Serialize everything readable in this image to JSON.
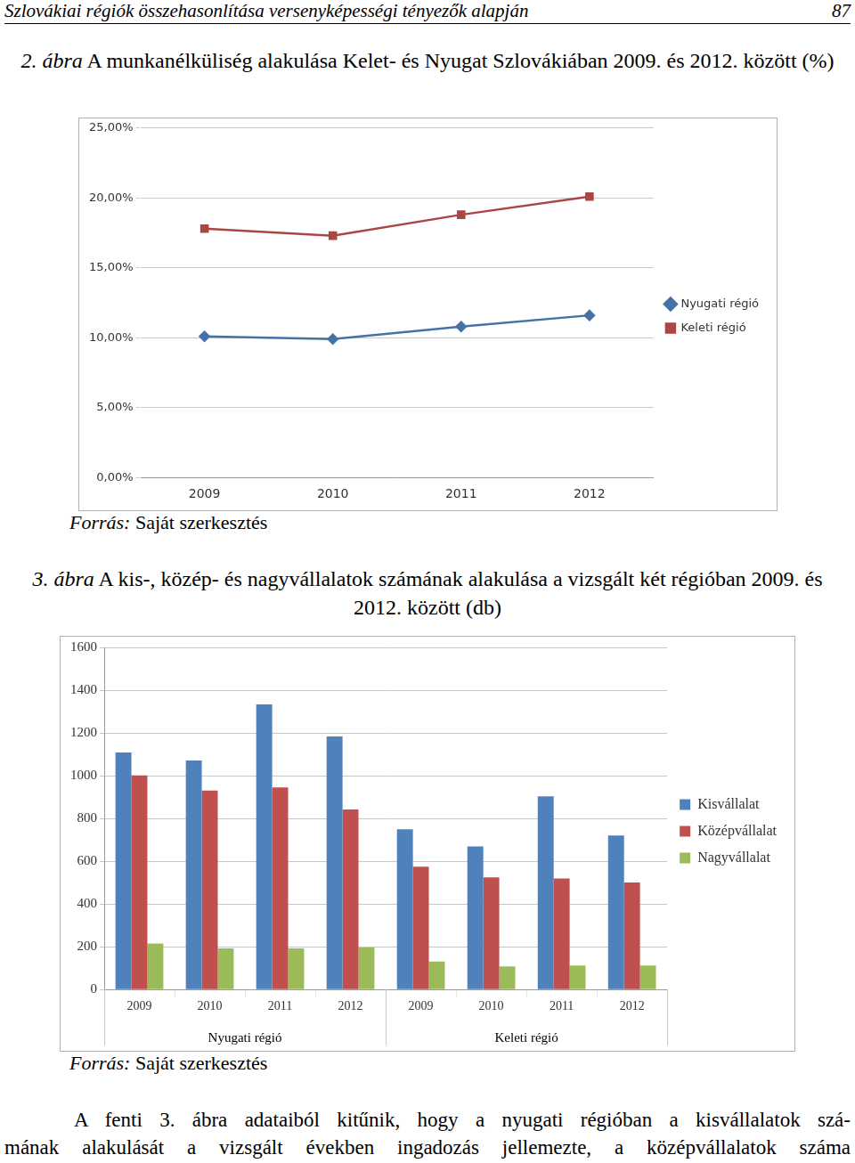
{
  "header": {
    "title": "Szlovákiai régiók összehasonlítása versenyképességi tényezők alapján",
    "page": "87"
  },
  "chart_data": [
    {
      "type": "line",
      "label": "2. ábra",
      "title": "A munkanélküliség alakulása Kelet- és Nyugat Szlovákiában 2009. és 2012. között (%)",
      "source_label": "Forrás:",
      "source": "Saját szerkesztés",
      "categories": [
        "2009",
        "2010",
        "2011",
        "2012"
      ],
      "series": [
        {
          "name": "Nyugati régió",
          "color": "#4572a7",
          "marker": "diamond",
          "values": [
            10.1,
            9.9,
            10.8,
            11.6
          ]
        },
        {
          "name": "Keleti régió",
          "color": "#aa4643",
          "marker": "square",
          "values": [
            17.8,
            17.3,
            18.8,
            20.1
          ]
        }
      ],
      "ylim": [
        0,
        25
      ],
      "yticks": [
        {
          "value": 0,
          "label": "0,00%"
        },
        {
          "value": 5,
          "label": "5,00%"
        },
        {
          "value": 10,
          "label": "10,00%"
        },
        {
          "value": 15,
          "label": "15,00%"
        },
        {
          "value": 20,
          "label": "20,00%"
        },
        {
          "value": 25,
          "label": "25,00%"
        }
      ],
      "grid": true,
      "legend": "right"
    },
    {
      "type": "bar",
      "label": "3. ábra",
      "title": "A kis-, közép- és nagyvállalatok számának alakulása a vizsgált két régióban 2009. és 2012. között (db)",
      "source_label": "Forrás:",
      "source": "Saját szerkesztés",
      "categories": [
        "2009",
        "2010",
        "2011",
        "2012",
        "2009",
        "2010",
        "2011",
        "2012"
      ],
      "groups": [
        "Nyugati régió",
        "Nyugati régió",
        "Nyugati régió",
        "Nyugati régió",
        "Keleti régió",
        "Keleti régió",
        "Keleti régió",
        "Keleti régió"
      ],
      "series": [
        {
          "name": "Kisvállalat",
          "color": "#4f81bd",
          "values": [
            1109,
            1071,
            1333,
            1184,
            749,
            669,
            903,
            720
          ]
        },
        {
          "name": "Középvállalat",
          "color": "#c0504d",
          "values": [
            1001,
            931,
            945,
            842,
            575,
            524,
            519,
            501
          ]
        },
        {
          "name": "Nagyvállalat",
          "color": "#9bbb59",
          "values": [
            215,
            192,
            192,
            197,
            131,
            108,
            112,
            112
          ]
        }
      ],
      "ylim": [
        0,
        1600
      ],
      "yticks": [
        0,
        200,
        400,
        600,
        800,
        1000,
        1200,
        1400,
        1600
      ],
      "grid": true,
      "legend": "right"
    }
  ],
  "body_lines": [
    "A fenti 3. ábra adataiból kitűnik, hogy a nyugati régióban a kisvállalatok szá-",
    "mának alakulását a vizsgált években ingadozás jellemezte, a középvállalatok száma"
  ]
}
